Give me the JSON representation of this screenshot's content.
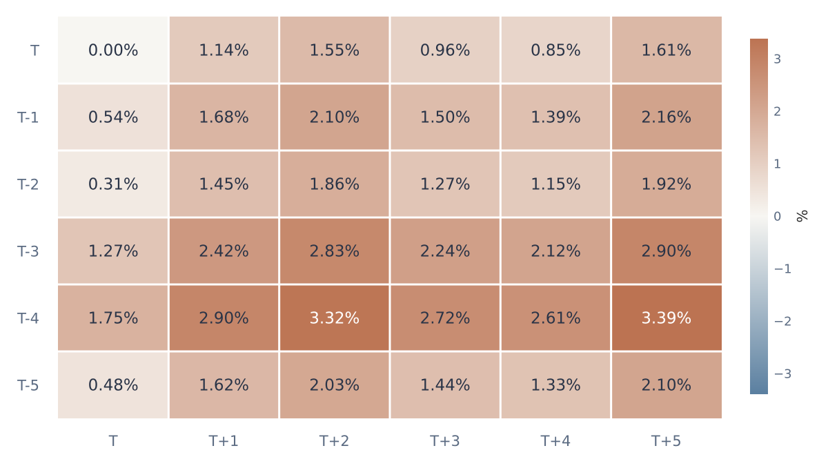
{
  "chart_data": {
    "type": "heatmap",
    "title": "",
    "xlabel": "",
    "ylabel": "",
    "x_categories": [
      "T",
      "T+1",
      "T+2",
      "T+3",
      "T+4",
      "T+5"
    ],
    "y_categories": [
      "T",
      "T-1",
      "T-2",
      "T-3",
      "T-4",
      "T-5"
    ],
    "values": [
      [
        0.0,
        1.14,
        1.55,
        0.96,
        0.85,
        1.61
      ],
      [
        0.54,
        1.68,
        2.1,
        1.5,
        1.39,
        2.16
      ],
      [
        0.31,
        1.45,
        1.86,
        1.27,
        1.15,
        1.92
      ],
      [
        1.27,
        2.42,
        2.83,
        2.24,
        2.12,
        2.9
      ],
      [
        1.75,
        2.9,
        3.32,
        2.72,
        2.61,
        3.39
      ],
      [
        0.48,
        1.62,
        2.03,
        1.44,
        1.33,
        2.1
      ]
    ],
    "value_format": "percent_2dp",
    "colorbar": {
      "title": "%",
      "range": [
        -3.39,
        3.39
      ],
      "ticks": [
        3,
        2,
        1,
        0,
        -1,
        -2,
        -3
      ],
      "tick_labels": [
        "3",
        "2",
        "1",
        "0",
        "−1",
        "−2",
        "−3"
      ],
      "colors": {
        "low": "#5a7fa0",
        "mid": "#f7f6f2",
        "high": "#bc7352"
      }
    },
    "grid": false
  }
}
